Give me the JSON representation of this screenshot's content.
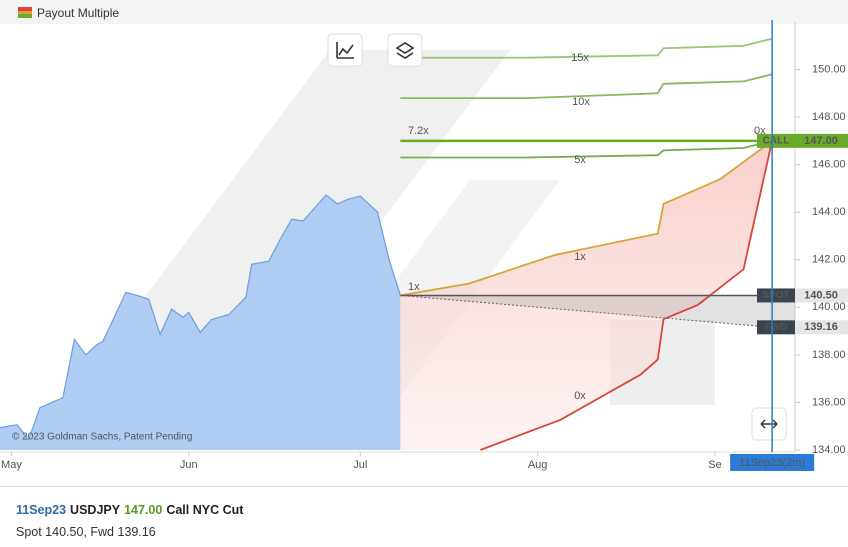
{
  "header": {
    "title": "Payout Multiple"
  },
  "chart_data": {
    "type": "line",
    "watermark": "© 2023 Goldman Sachs, Patent Pending",
    "xlim": [
      -2,
      137
    ],
    "xticks": [
      {
        "value": 0,
        "label": "May"
      },
      {
        "value": 31,
        "label": "Jun"
      },
      {
        "value": 61,
        "label": "Jul"
      },
      {
        "value": 92,
        "label": "Aug"
      },
      {
        "value": 123,
        "label": "Se"
      }
    ],
    "ylim": [
      134,
      152
    ],
    "yticks": [
      {
        "value": 134,
        "label": "134.00"
      },
      {
        "value": 136,
        "label": "136.00"
      },
      {
        "value": 138,
        "label": "138.00"
      },
      {
        "value": 140,
        "label": "140.00"
      },
      {
        "value": 142,
        "label": "142.00"
      },
      {
        "value": 144,
        "label": "144.00"
      },
      {
        "value": 146,
        "label": "146.00"
      },
      {
        "value": 148,
        "label": "148.00"
      },
      {
        "value": 150,
        "label": "150.00"
      }
    ],
    "history": {
      "color": "#a7c8f2",
      "line_color": "#6c9fe0",
      "x": [
        -2,
        1,
        3,
        5,
        9,
        11,
        13,
        15,
        16,
        20,
        22,
        24,
        26,
        28,
        30,
        31,
        33,
        35,
        38,
        41,
        42,
        45,
        47,
        49,
        51,
        55,
        57,
        59,
        61,
        64,
        66,
        68
      ],
      "values": [
        134.94,
        135.06,
        134.43,
        135.78,
        136.2,
        138.65,
        138.0,
        138.44,
        138.57,
        140.63,
        140.5,
        140.34,
        138.86,
        139.92,
        139.58,
        139.79,
        138.95,
        139.49,
        139.7,
        140.42,
        141.81,
        141.94,
        142.87,
        143.71,
        143.63,
        144.73,
        144.35,
        144.56,
        144.68,
        144.01,
        142.03,
        140.5
      ]
    },
    "series": [
      {
        "name": "15x",
        "color": "#9cc77a",
        "x": [
          68,
          90,
          113,
          114,
          128,
          133
        ],
        "values": [
          150.5,
          150.5,
          150.6,
          150.9,
          151.0,
          151.3
        ]
      },
      {
        "name": "10x",
        "color": "#86b861",
        "x": [
          68,
          90,
          113,
          114,
          128,
          133
        ],
        "values": [
          148.8,
          148.8,
          149.0,
          149.4,
          149.5,
          149.8
        ]
      },
      {
        "name": "5x",
        "color": "#74ad4f",
        "x": [
          68,
          90,
          113,
          114,
          128,
          133
        ],
        "values": [
          146.3,
          146.3,
          146.4,
          146.6,
          146.7,
          147.0
        ]
      },
      {
        "name": "1x",
        "color": "#d9a43b",
        "x": [
          68,
          80,
          95,
          113,
          114,
          124,
          133
        ],
        "values": [
          140.5,
          141.0,
          142.2,
          143.1,
          144.35,
          145.4,
          147
        ]
      },
      {
        "name": "0x",
        "color": "#d9453b",
        "x": [
          82,
          96,
          110,
          113,
          114,
          120,
          128,
          133
        ],
        "values": [
          134,
          135.27,
          137.17,
          137.8,
          139.5,
          140.1,
          141.6,
          147
        ]
      }
    ],
    "annotations": [
      "7.2x",
      "1x",
      "0x"
    ],
    "levels": [
      {
        "name": "CALL",
        "value": 147,
        "label": "147.00",
        "color": "#6aaa2a"
      },
      {
        "name": "SPOT",
        "value": 140.5,
        "label": "140.50",
        "color": "#3a4550"
      },
      {
        "name": "FWD",
        "value": 139.16,
        "label": "139.16",
        "color": "#3a4550"
      }
    ],
    "expiry": {
      "x": 133,
      "label": "11Sep23(2m)",
      "color": "#2a7bd6"
    }
  },
  "footer": {
    "line1": [
      {
        "text": "11Sep23",
        "color": "#2e6aa8"
      },
      {
        "text": "USDJPY",
        "color": "#222"
      },
      {
        "text": "147.00",
        "color": "#5a9a22"
      },
      {
        "text": "Call NYC Cut",
        "color": "#222"
      }
    ],
    "line2": "Spot 140.50, Fwd 139.16"
  }
}
